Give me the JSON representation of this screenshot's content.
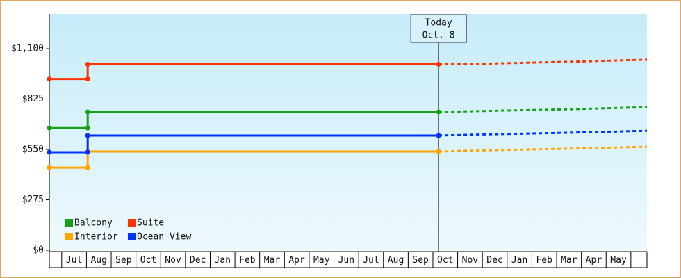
{
  "chart_data": {
    "type": "line",
    "categories": [
      "Jul",
      "Aug",
      "Sep",
      "Oct",
      "Nov",
      "Dec",
      "Jan",
      "Feb",
      "Mar",
      "Apr",
      "May",
      "Jun",
      "Jul",
      "Aug",
      "Sep",
      "Oct",
      "Nov",
      "Dec",
      "Jan",
      "Feb",
      "Mar",
      "Apr",
      "May"
    ],
    "xlim": [
      -0.5,
      23.65
    ],
    "ylim": [
      0,
      1290
    ],
    "yticks": [
      {
        "value": 0,
        "label": "$0"
      },
      {
        "value": 275,
        "label": "$275"
      },
      {
        "value": 550,
        "label": "$550"
      },
      {
        "value": 825,
        "label": "$825"
      },
      {
        "value": 1100,
        "label": "$1,100"
      }
    ],
    "x": [
      -0.5,
      1.05,
      1.05,
      15.23
    ],
    "forecast_x": [
      15.23,
      17,
      20,
      23.65
    ],
    "series": [
      {
        "name": "Balcony",
        "color": "#18a018",
        "values": [
          667,
          667,
          755,
          755
        ],
        "forecast_values": [
          755,
          760,
          768,
          781
        ]
      },
      {
        "name": "Suite",
        "color": "#ff3300",
        "values": [
          935,
          935,
          1015,
          1015
        ],
        "forecast_values": [
          1015,
          1018,
          1027,
          1040
        ]
      },
      {
        "name": "Interior",
        "color": "#ffa500",
        "values": [
          451,
          451,
          539,
          539
        ],
        "forecast_values": [
          539,
          545,
          553,
          565
        ]
      },
      {
        "name": "Ocean View",
        "color": "#0033ff",
        "values": [
          535,
          535,
          626,
          626
        ],
        "forecast_values": [
          626,
          632,
          640,
          652
        ]
      }
    ],
    "annotation": {
      "x": 15.23,
      "lines": [
        "Today",
        "Oct. 8"
      ]
    }
  }
}
